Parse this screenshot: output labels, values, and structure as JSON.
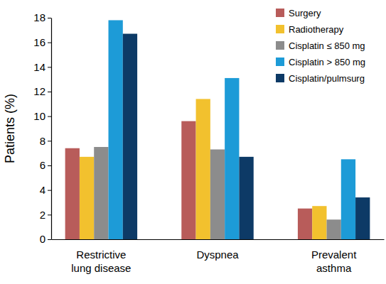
{
  "chart_data": {
    "type": "bar",
    "y_label": "Patients (%)",
    "categories": [
      "Restrictive lung disease",
      "Dyspnea",
      "Prevalent asthma"
    ],
    "series": [
      {
        "name": "Surgery",
        "color": "#b85c5a",
        "values": [
          7.4,
          9.6,
          2.5
        ]
      },
      {
        "name": "Radiotherapy",
        "color": "#f2c12e",
        "values": [
          6.7,
          11.4,
          2.7
        ]
      },
      {
        "name": "Cisplatin ≤ 850 mg",
        "color": "#8c8c8c",
        "values": [
          7.5,
          7.3,
          1.6
        ]
      },
      {
        "name": "Cisplatin > 850 mg",
        "color": "#1d9bd7",
        "values": [
          17.8,
          13.1,
          6.5
        ]
      },
      {
        "name": "Cisplatin/pulmsurg",
        "color": "#0d3a66",
        "values": [
          16.7,
          6.7,
          3.4
        ]
      }
    ],
    "ylim": [
      0,
      18
    ],
    "yticks": [
      0,
      2,
      4,
      6,
      8,
      10,
      12,
      14,
      16,
      18
    ],
    "grid": false,
    "legend": "top-right"
  }
}
